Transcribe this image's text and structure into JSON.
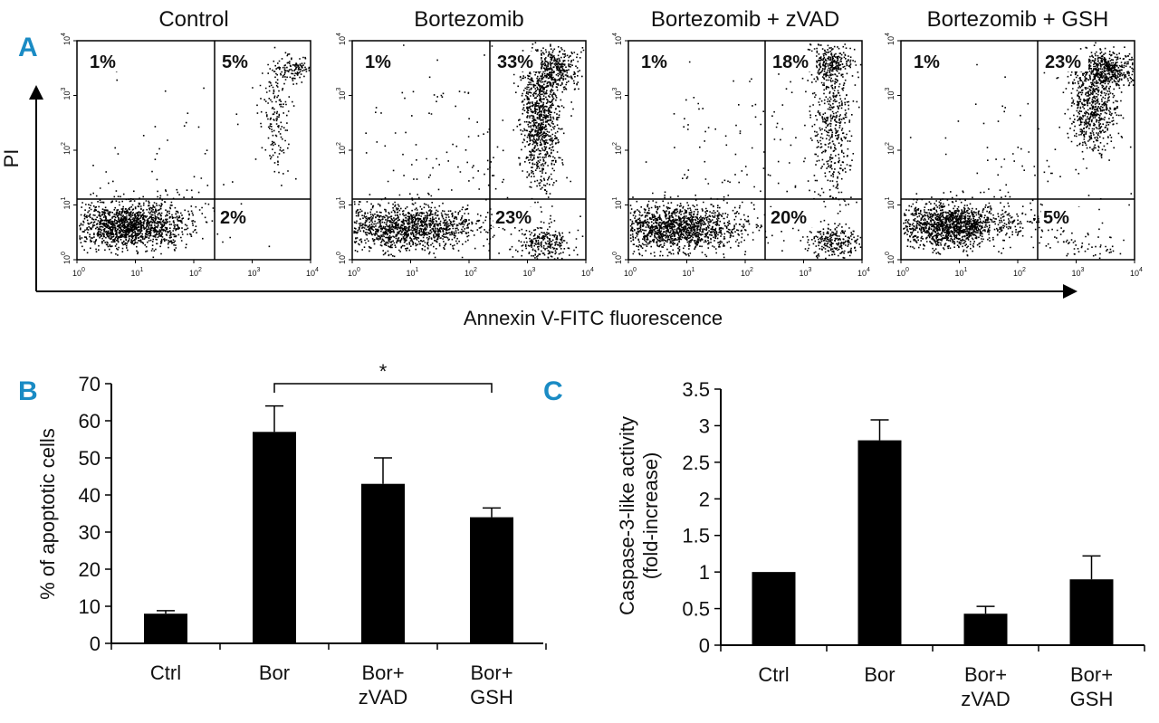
{
  "panels": {
    "a": "A",
    "b": "B",
    "c": "C"
  },
  "flow": {
    "y_label": "PI",
    "x_label": "Annexin V-FITC fluorescence",
    "tick_base": "10",
    "tick_exps": [
      "0",
      "1",
      "2",
      "3",
      "4"
    ],
    "plots": [
      {
        "title": "Control",
        "q_ul": "1%",
        "q_ur": "5%",
        "q_lr": "2%"
      },
      {
        "title": "Bortezomib",
        "q_ul": "1%",
        "q_ur": "33%",
        "q_lr": "23%"
      },
      {
        "title": "Bortezomib + zVAD",
        "q_ul": "1%",
        "q_ur": "18%",
        "q_lr": "20%"
      },
      {
        "title": "Bortezomib + GSH",
        "q_ul": "1%",
        "q_ur": "23%",
        "q_lr": "5%"
      }
    ]
  },
  "chart_data": [
    {
      "type": "bar",
      "panel": "B",
      "categories": [
        [
          "Ctrl"
        ],
        [
          "Bor"
        ],
        [
          "Bor+",
          "zVAD"
        ],
        [
          "Bor+",
          "GSH"
        ]
      ],
      "values": [
        8,
        57,
        43,
        34
      ],
      "errors": [
        0.8,
        7,
        7,
        2.5
      ],
      "ylabel": "% of apoptotic cells",
      "ylim": [
        0,
        70
      ],
      "yticks": [
        0,
        10,
        20,
        30,
        40,
        50,
        60,
        70
      ],
      "annotation": {
        "text": "*",
        "from": 1,
        "to": 3
      }
    },
    {
      "type": "bar",
      "panel": "C",
      "categories": [
        [
          "Ctrl"
        ],
        [
          "Bor"
        ],
        [
          "Bor+",
          "zVAD"
        ],
        [
          "Bor+",
          "GSH"
        ]
      ],
      "values": [
        1,
        2.8,
        0.43,
        0.9
      ],
      "errors": [
        0,
        0.28,
        0.1,
        0.32
      ],
      "ylabel": [
        "Caspase-3-like activity",
        "(fold-increase)"
      ],
      "ylim": [
        0,
        3.5
      ],
      "yticks": [
        "0",
        "0.5",
        "1",
        "1.5",
        "2",
        "2.5",
        "3",
        "3.5"
      ]
    }
  ]
}
